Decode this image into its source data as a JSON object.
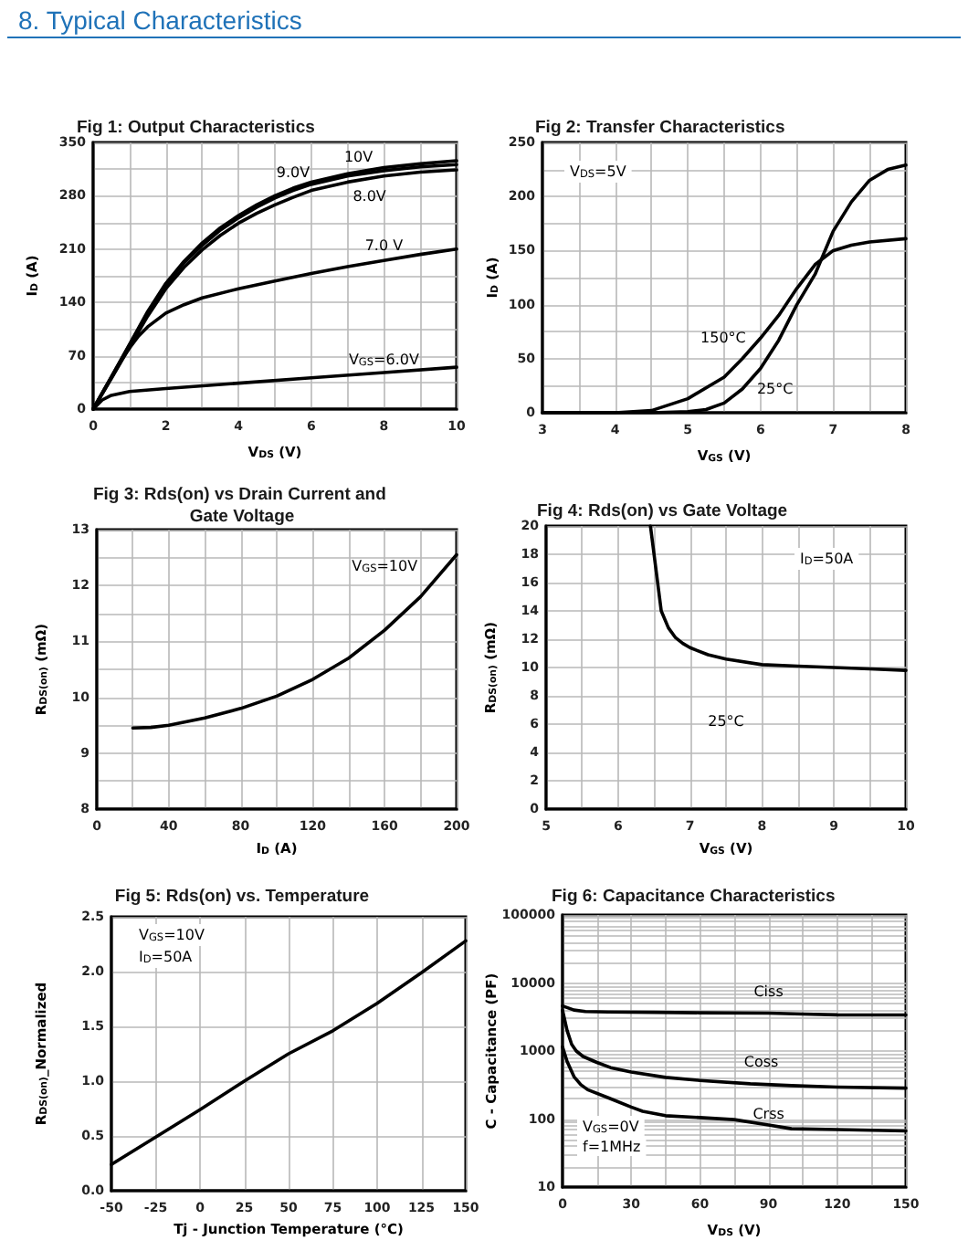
{
  "chart_data": [
    {
      "type": "other",
      "title": "8. Typical Characteristics"
    },
    {
      "type": "line",
      "title": "Fig 1: Output Characteristics",
      "xlabel": "V$_{DS}$ (V)",
      "ylabel": "I$_{D}$ (A)",
      "xlim": [
        0,
        10
      ],
      "ylim": [
        0,
        350
      ],
      "xticks": [
        0,
        {
          "value": 1,
          "label": null
        },
        2,
        {
          "value": 3,
          "label": null
        },
        4,
        {
          "value": 5,
          "label": null
        },
        6,
        {
          "value": 7,
          "label": null
        },
        8,
        {
          "value": 9,
          "label": null
        },
        10
      ],
      "yticks": [
        0,
        {
          "value": 35,
          "label": null
        },
        70,
        {
          "value": 105,
          "label": null
        },
        140,
        {
          "value": 175,
          "label": null
        },
        210,
        {
          "value": 245,
          "label": null
        },
        280,
        {
          "value": 315,
          "label": null
        },
        350
      ],
      "grid": true,
      "marker": "none",
      "series": [
        {
          "name": "10V",
          "color": "#000000",
          "x": [
            0,
            0.5,
            1,
            1.5,
            2,
            2.5,
            3,
            3.5,
            4,
            4.5,
            5,
            5.5,
            6,
            7,
            8,
            9,
            10
          ],
          "values": [
            0,
            42,
            85,
            128,
            165,
            194,
            218,
            238,
            254,
            268,
            280,
            290,
            298,
            309,
            317,
            322,
            326
          ]
        },
        {
          "name": "9.0V",
          "color": "#000000",
          "x": [
            0,
            0.5,
            1,
            1.5,
            2,
            2.5,
            3,
            3.5,
            4,
            4.5,
            5,
            5.5,
            6,
            7,
            8,
            9,
            10
          ],
          "values": [
            0,
            42,
            84,
            126,
            163,
            192,
            215,
            235,
            251,
            265,
            277,
            287,
            295,
            306,
            313,
            318,
            321
          ]
        },
        {
          "name": "8.0V",
          "color": "#000000",
          "x": [
            0,
            0.5,
            1,
            1.5,
            2,
            2.5,
            3,
            3.5,
            4,
            4.5,
            5,
            5.5,
            6,
            7,
            8,
            9,
            10
          ],
          "values": [
            0,
            40,
            81,
            122,
            158,
            186,
            209,
            228,
            244,
            257,
            268,
            278,
            287,
            298,
            306,
            311,
            314
          ]
        },
        {
          "name": "7.0 V",
          "color": "#000000",
          "x": [
            0,
            0.5,
            0.8,
            1,
            1.25,
            1.5,
            2,
            2.5,
            3,
            4,
            5,
            6,
            7,
            8,
            9,
            10
          ],
          "values": [
            0,
            41,
            66,
            80,
            96,
            108,
            126,
            137,
            146,
            158,
            168,
            178,
            187,
            195,
            203,
            210
          ]
        },
        {
          "name": "V$_{GS}$=6.0V",
          "color": "#000000",
          "x": [
            0,
            0.25,
            0.5,
            1,
            2,
            4,
            6,
            8,
            10
          ],
          "values": [
            0,
            12,
            18,
            23,
            27,
            34,
            41,
            48,
            55
          ]
        }
      ]
    },
    {
      "type": "line",
      "title": "Fig 2: Transfer Characteristics",
      "xlabel": "V$_{GS}$ (V)",
      "ylabel": "I$_{D}$ (A)",
      "xlim": [
        3,
        8
      ],
      "ylim": [
        0,
        250
      ],
      "xticks": [
        3,
        {
          "value": 3.5,
          "label": null
        },
        4,
        {
          "value": 4.5,
          "label": null
        },
        5,
        {
          "value": 5.5,
          "label": null
        },
        6,
        {
          "value": 6.5,
          "label": null
        },
        7,
        {
          "value": 7.5,
          "label": null
        },
        8
      ],
      "yticks": [
        0,
        {
          "value": 25,
          "label": null
        },
        50,
        {
          "value": 75,
          "label": null
        },
        100,
        {
          "value": 125,
          "label": null
        },
        150,
        {
          "value": 175,
          "label": null
        },
        200,
        {
          "value": 225,
          "label": null
        },
        250
      ],
      "grid": true,
      "marker": "none",
      "annotations": [
        "V$_{DS}$=5V"
      ],
      "series": [
        {
          "name": "150°C",
          "color": "#000000",
          "x": [
            3,
            4,
            4.5,
            5,
            5.5,
            5.75,
            6,
            6.25,
            6.5,
            6.75,
            7,
            7.25,
            7.5,
            8
          ],
          "values": [
            0,
            0,
            2,
            13,
            33,
            50,
            69,
            90,
            115,
            137,
            150,
            155,
            158,
            161
          ]
        },
        {
          "name": "25°C",
          "color": "#000000",
          "x": [
            3,
            4,
            4.5,
            5,
            5.25,
            5.5,
            5.75,
            6,
            6.25,
            6.5,
            6.75,
            7,
            7.25,
            7.5,
            7.75,
            8
          ],
          "values": [
            0,
            0,
            0,
            1,
            3,
            9,
            22,
            41,
            67,
            100,
            128,
            168,
            195,
            215,
            225,
            229
          ]
        }
      ]
    },
    {
      "type": "line",
      "title": "Fig 3: Rds(on) vs Drain Current and Gate Voltage",
      "xlabel": "I$_{D}$ (A)",
      "ylabel": "R$_{DS(on)}$ (mΩ)",
      "xlim": [
        0,
        200
      ],
      "ylim": [
        8,
        13
      ],
      "xticks": [
        0,
        {
          "value": 20,
          "label": null
        },
        40,
        {
          "value": 60,
          "label": null
        },
        80,
        {
          "value": 100,
          "label": null
        },
        120,
        {
          "value": 140,
          "label": null
        },
        160,
        {
          "value": 180,
          "label": null
        },
        200
      ],
      "yticks": [
        8,
        {
          "value": 8.5,
          "label": null
        },
        9,
        {
          "value": 9.5,
          "label": null
        },
        10,
        {
          "value": 10.5,
          "label": null
        },
        11,
        {
          "value": 11.5,
          "label": null
        },
        12,
        {
          "value": 12.5,
          "label": null
        },
        13
      ],
      "grid": true,
      "marker": "none",
      "series": [
        {
          "name": "V$_{GS}$=10V",
          "color": "#000000",
          "x": [
            20,
            30,
            40,
            60,
            80,
            100,
            120,
            140,
            160,
            180,
            200
          ],
          "values": [
            9.45,
            9.46,
            9.5,
            9.63,
            9.8,
            10.02,
            10.32,
            10.7,
            11.2,
            11.8,
            12.55
          ]
        }
      ]
    },
    {
      "type": "line",
      "title": "Fig 4: Rds(on) vs Gate Voltage",
      "xlabel": "V$_{GS}$ (V)",
      "ylabel": "R$_{DS(on)}$ (mΩ)",
      "xlim": [
        5,
        10
      ],
      "ylim": [
        0,
        20
      ],
      "xticks": [
        5,
        {
          "value": 5.5,
          "label": null
        },
        6,
        {
          "value": 6.5,
          "label": null
        },
        7,
        {
          "value": 7.5,
          "label": null
        },
        8,
        {
          "value": 8.5,
          "label": null
        },
        9,
        {
          "value": 9.5,
          "label": null
        },
        10
      ],
      "yticks": [
        0,
        2,
        4,
        6,
        8,
        10,
        12,
        14,
        16,
        18,
        20
      ],
      "grid": true,
      "marker": "none",
      "annotations": [
        "I$_{D}$=50A"
      ],
      "series": [
        {
          "name": "25°C",
          "color": "#000000",
          "x": [
            6.45,
            6.6,
            6.7,
            6.8,
            6.9,
            7,
            7.25,
            7.5,
            8,
            8.5,
            9,
            9.5,
            10
          ],
          "values": [
            20,
            14,
            12.8,
            12.1,
            11.7,
            11.4,
            10.9,
            10.6,
            10.2,
            10.1,
            10,
            9.9,
            9.8
          ]
        }
      ]
    },
    {
      "type": "line",
      "title": "Fig 5: Rds(on) vs. Temperature",
      "xlabel": "Tj - Junction Temperature (°C)",
      "ylabel": "R$_{DS(on)}$_Normalized",
      "xlim": [
        -50,
        150
      ],
      "ylim": [
        0,
        2.5
      ],
      "xticks": [
        -50,
        -25,
        0,
        25,
        50,
        75,
        100,
        125,
        150
      ],
      "yticks": [
        {
          "value": 0,
          "label": "0.0"
        },
        0.5,
        {
          "value": 1,
          "label": "1.0"
        },
        1.5,
        {
          "value": 2,
          "label": "2.0"
        },
        2.5
      ],
      "grid": true,
      "marker": "none",
      "annotations": [
        "V$_{GS}$=10V",
        "I$_{D}$=50A"
      ],
      "series": [
        {
          "color": "#000000",
          "x": [
            -50,
            -25,
            0,
            25,
            50,
            75,
            100,
            125,
            150
          ],
          "values": [
            0.24,
            0.49,
            0.74,
            1.0,
            1.25,
            1.46,
            1.71,
            1.99,
            2.28
          ]
        }
      ]
    },
    {
      "type": "line",
      "title": "Fig 6: Capacitance Characteristics",
      "xlabel": "V$_{DS}$ (V)",
      "ylabel": "C - Capacitance (PF)",
      "xlim": [
        0,
        150
      ],
      "ylim": [
        10,
        100000
      ],
      "log": true,
      "xticks": [
        0,
        {
          "value": 15,
          "label": null
        },
        30,
        {
          "value": 45,
          "label": null
        },
        60,
        {
          "value": 75,
          "label": null
        },
        90,
        {
          "value": 105,
          "label": null
        },
        120,
        {
          "value": 135,
          "label": null
        },
        150
      ],
      "yticks": [
        10,
        {
          "value": 20,
          "label": null
        },
        {
          "value": 30,
          "label": null
        },
        {
          "value": 40,
          "label": null
        },
        {
          "value": 50,
          "label": null
        },
        {
          "value": 60,
          "label": null
        },
        {
          "value": 70,
          "label": null
        },
        {
          "value": 80,
          "label": null
        },
        {
          "value": 90,
          "label": null
        },
        100,
        {
          "value": 200,
          "label": null
        },
        {
          "value": 300,
          "label": null
        },
        {
          "value": 400,
          "label": null
        },
        {
          "value": 500,
          "label": null
        },
        {
          "value": 600,
          "label": null
        },
        {
          "value": 700,
          "label": null
        },
        {
          "value": 800,
          "label": null
        },
        {
          "value": 900,
          "label": null
        },
        1000,
        {
          "value": 2000,
          "label": null
        },
        {
          "value": 3000,
          "label": null
        },
        {
          "value": 4000,
          "label": null
        },
        {
          "value": 5000,
          "label": null
        },
        {
          "value": 6000,
          "label": null
        },
        {
          "value": 7000,
          "label": null
        },
        {
          "value": 8000,
          "label": null
        },
        {
          "value": 9000,
          "label": null
        },
        10000,
        {
          "value": 20000,
          "label": null
        },
        {
          "value": 30000,
          "label": null
        },
        {
          "value": 40000,
          "label": null
        },
        {
          "value": 50000,
          "label": null
        },
        {
          "value": 60000,
          "label": null
        },
        {
          "value": 70000,
          "label": null
        },
        {
          "value": 80000,
          "label": null
        },
        {
          "value": 90000,
          "label": null
        },
        100000
      ],
      "grid": true,
      "marker": "none",
      "annotations": [
        "V$_{GS}$=0V",
        "f=1MHz"
      ],
      "series": [
        {
          "name": "Ciss",
          "color": "#000000",
          "x": [
            0,
            5,
            10,
            20,
            40,
            60,
            90,
            105,
            120,
            150
          ],
          "values": [
            4600,
            4000,
            3800,
            3750,
            3700,
            3650,
            3600,
            3500,
            3400,
            3390
          ]
        },
        {
          "name": "Coss",
          "color": "#000000",
          "x": [
            0,
            2,
            4,
            6,
            9,
            15,
            21,
            30,
            45,
            60,
            82,
            100,
            120,
            150
          ],
          "values": [
            3960,
            2000,
            1250,
            1000,
            830,
            680,
            570,
            490,
            410,
            370,
            330,
            310,
            295,
            285
          ]
        },
        {
          "name": "Crss",
          "color": "#000000",
          "x": [
            0,
            2,
            5,
            8,
            11,
            20,
            30,
            35,
            45,
            60,
            75,
            90,
            100,
            120,
            150
          ],
          "values": [
            1150,
            700,
            420,
            320,
            270,
            205,
            150,
            130,
            112,
            105,
            98,
            82,
            72,
            70,
            67
          ]
        }
      ]
    }
  ]
}
